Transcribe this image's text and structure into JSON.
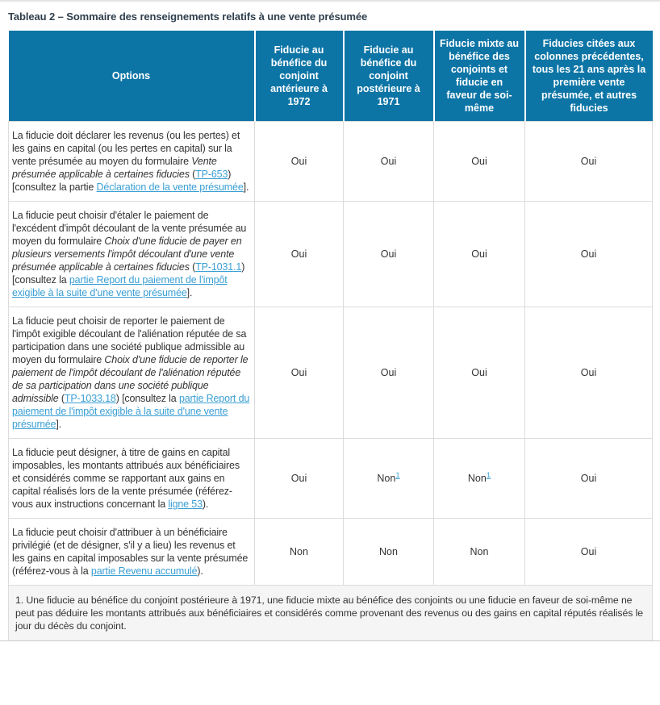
{
  "page": {
    "title": "Tableau 2 – Sommaire des renseignements relatifs à une vente présumée"
  },
  "colors": {
    "header_bg": "#0D75A6",
    "header_text": "#FFFFFF",
    "link": "#3A9FD4",
    "text": "#333333",
    "title_text": "#2F3F4D",
    "border": "#DCDCDC",
    "footnote_bg": "#F5F5F5",
    "top_rule": "#E4E4E4",
    "bottom_rule": "#C9C9C9"
  },
  "table": {
    "header": {
      "columns": [
        "Options",
        "Fiducie au bénéfice du conjoint antérieure à 1972",
        "Fiducie au bénéfice du conjoint postérieure à 1971",
        "Fiducie mixte au bénéfice des conjoints et fiducie en faveur de soi-même",
        "Fiducies citées aux colonnes précédentes, tous les 21 ans après la première vente présumée, et autres fiducies"
      ]
    },
    "rows": [
      {
        "option": [
          {
            "t": "La fiducie doit déclarer les revenus (ou les pertes) et les gains en capital (ou les pertes en capital) sur la vente présumée au moyen du formulaire ",
            "s": "plain"
          },
          {
            "t": "Vente présumée applicable à certaines fiducies",
            "s": "italic"
          },
          {
            "t": " (",
            "s": "plain"
          },
          {
            "t": "TP-653",
            "s": "link"
          },
          {
            "t": ") [consultez la partie ",
            "s": "plain"
          },
          {
            "t": "Déclaration de la vente présumée",
            "s": "link"
          },
          {
            "t": "].",
            "s": "plain"
          }
        ],
        "values": [
          {
            "text": "Oui"
          },
          {
            "text": "Oui"
          },
          {
            "text": "Oui"
          },
          {
            "text": "Oui"
          }
        ]
      },
      {
        "option": [
          {
            "t": "La fiducie peut choisir d'étaler le paiement de l'excédent d'impôt découlant de la vente présumée au moyen du formulaire ",
            "s": "plain"
          },
          {
            "t": "Choix d'une fiducie de payer en plusieurs versements l'impôt découlant d'une vente présumée applicable à certaines fiducies",
            "s": "italic"
          },
          {
            "t": " (",
            "s": "plain"
          },
          {
            "t": "TP-1031.1",
            "s": "link"
          },
          {
            "t": ") [consultez la ",
            "s": "plain"
          },
          {
            "t": "partie Report du paiement de l'impôt exigible à la suite d'une vente présumée",
            "s": "link"
          },
          {
            "t": "].",
            "s": "plain"
          }
        ],
        "values": [
          {
            "text": "Oui"
          },
          {
            "text": "Oui"
          },
          {
            "text": "Oui"
          },
          {
            "text": "Oui"
          }
        ]
      },
      {
        "option": [
          {
            "t": "La fiducie peut choisir de reporter le paiement de l'impôt exigible découlant de l'aliénation réputée de sa participation dans une société publique admissible au moyen du formulaire ",
            "s": "plain"
          },
          {
            "t": "Choix d'une fiducie de reporter le paiement de l'impôt découlant de l'aliénation réputée de sa participation dans une société publique admissible",
            "s": "italic"
          },
          {
            "t": " (",
            "s": "plain"
          },
          {
            "t": "TP-1033.18",
            "s": "link"
          },
          {
            "t": ") [consultez la ",
            "s": "plain"
          },
          {
            "t": "partie Report du paiement de l'impôt exigible à la suite d'une vente présumée",
            "s": "link"
          },
          {
            "t": "].",
            "s": "plain"
          }
        ],
        "values": [
          {
            "text": "Oui"
          },
          {
            "text": "Oui"
          },
          {
            "text": "Oui"
          },
          {
            "text": "Oui"
          }
        ]
      },
      {
        "option": [
          {
            "t": "La fiducie peut désigner, à titre de gains en capital imposables, les montants attribués aux bénéficiaires et considérés comme se rapportant aux gains en capital réalisés lors de la vente présumée (référez-vous aux instructions concernant la ",
            "s": "plain"
          },
          {
            "t": "ligne 53",
            "s": "link"
          },
          {
            "t": ").",
            "s": "plain"
          }
        ],
        "values": [
          {
            "text": "Oui"
          },
          {
            "text": "Non",
            "sup": "1"
          },
          {
            "text": "Non",
            "sup": "1"
          },
          {
            "text": "Oui"
          }
        ]
      },
      {
        "option": [
          {
            "t": "La fiducie peut choisir d'attribuer à un bénéficiaire privilégié (et de désigner, s'il y a lieu) les revenus et les gains en capital imposables sur la vente présumée (référez-vous à la ",
            "s": "plain"
          },
          {
            "t": "partie Revenu accumulé",
            "s": "link"
          },
          {
            "t": ").",
            "s": "plain"
          }
        ],
        "values": [
          {
            "text": "Non"
          },
          {
            "text": "Non"
          },
          {
            "text": "Non"
          },
          {
            "text": "Oui"
          }
        ]
      }
    ],
    "footnote": "1. Une fiducie au bénéfice du conjoint postérieure à 1971, une fiducie mixte au bénéfice des conjoints ou une fiducie en faveur de soi-même ne peut pas déduire les montants attribués aux bénéficiaires et considérés comme provenant des revenus ou des gains en capital réputés réalisés le jour du décès du conjoint."
  }
}
